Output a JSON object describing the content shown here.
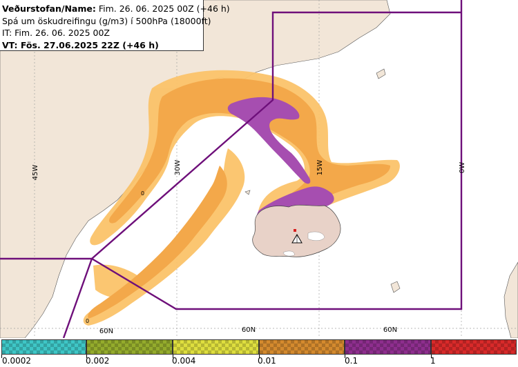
{
  "info": {
    "line1_label": "Veðurstofan/Name:",
    "line1_value": " Fim. 26. 06. 2025 00Z (+46 h)",
    "line2": "Spá um öskudreifingu (g/m3) í 500hPa (18000ft)",
    "line3": "IT: Fim. 26. 06. 2025 00Z",
    "line4_label": "VT:",
    "line4_value": " Fös. 27.06.2025 22Z (+46 h)"
  },
  "map": {
    "lon_labels": [
      "45W",
      "30W",
      "15W",
      "0W"
    ],
    "lat_labels": [
      "60N",
      "60N",
      "60N"
    ],
    "zero_markers": [
      "0",
      "0"
    ],
    "volcano": "volcano-triangle-icon"
  },
  "legend": {
    "labels": [
      "0.0002",
      "0.002",
      "0.004",
      "0.01",
      "0.1",
      "1"
    ],
    "colors": [
      "#3ec6c6",
      "#94ab2c",
      "#dede3e",
      "#d48a2e",
      "#8e2e8e",
      "#d82a2a"
    ]
  },
  "colors": {
    "land": "#f2e6d8",
    "iceland": "#e8d2c8",
    "fir_border": "#6e0f7a",
    "ash_low": "#fbc36a",
    "ash_mid": "#f3ad55",
    "ash_high": "#a64eb0"
  }
}
